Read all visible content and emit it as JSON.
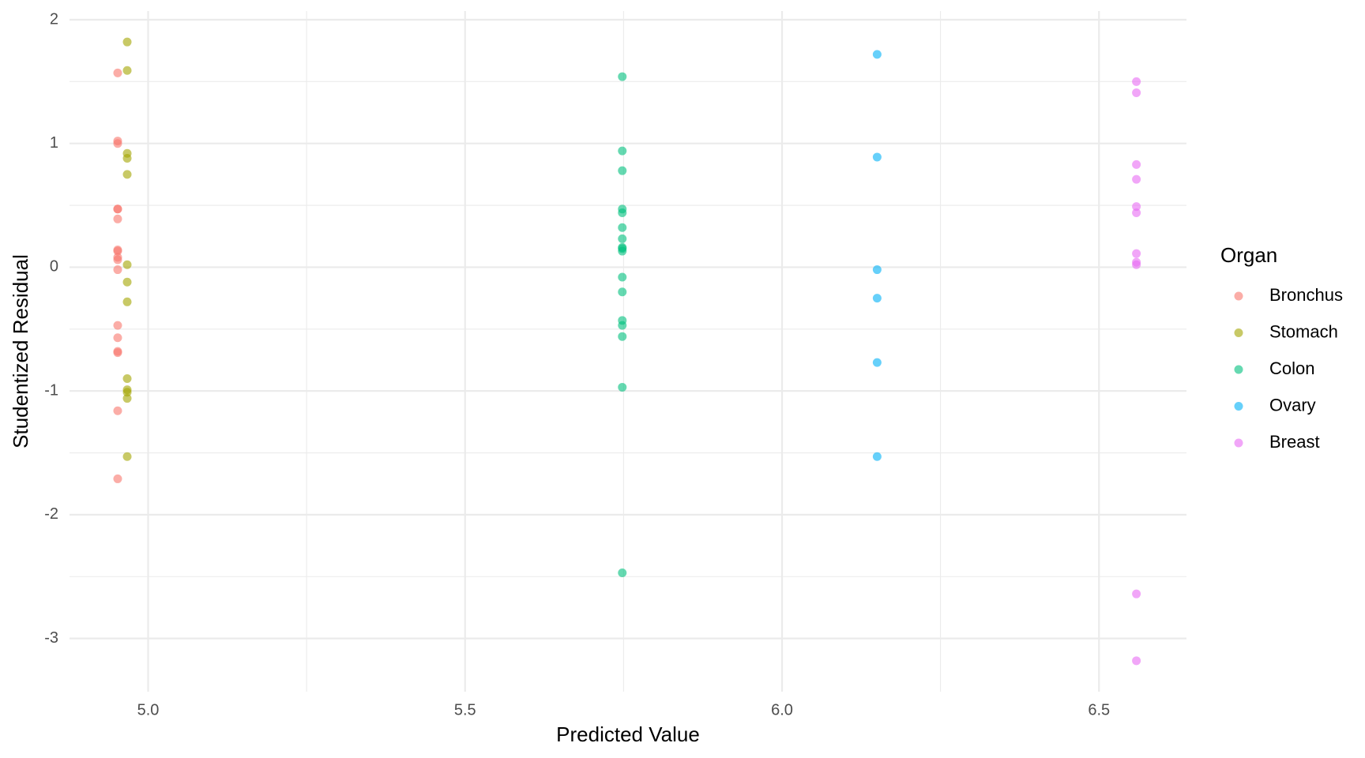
{
  "chart_data": {
    "type": "scatter",
    "x_label": "Predicted Value",
    "y_label": "Studentized Residual",
    "legend_title": "Organ",
    "legend_position": "right",
    "grid": true,
    "xlim": [
      4.876,
      6.638
    ],
    "ylim": [
      -3.43,
      2.07
    ],
    "xticks": [
      {
        "value": 5,
        "label": "5.0"
      },
      5.5,
      {
        "value": 6,
        "label": "6.0"
      },
      6.5
    ],
    "yticks": [
      -3,
      -2,
      -1,
      0,
      1,
      2
    ],
    "x_minor_ticks": [
      5.25,
      5.75,
      6.25
    ],
    "y_minor_ticks": [
      -2.5,
      -1.5,
      -0.5,
      0.5,
      1.5
    ],
    "opacity": 0.6,
    "series": [
      {
        "name": "Bronchus",
        "color": "#F8766D",
        "x": [
          4.952,
          4.952,
          4.952,
          4.952,
          4.952,
          4.952,
          4.952,
          4.952,
          4.952,
          4.952,
          4.952,
          4.952,
          4.952,
          4.952,
          4.952,
          4.952,
          4.952
        ],
        "values": [
          1.57,
          1.02,
          1.0,
          0.47,
          0.47,
          0.39,
          0.14,
          0.13,
          0.08,
          0.06,
          -0.02,
          -0.47,
          -0.57,
          -0.68,
          -0.69,
          -1.16,
          -1.71
        ]
      },
      {
        "name": "Stomach",
        "color": "#A3A500",
        "x": [
          4.967,
          4.967,
          4.967,
          4.967,
          4.967,
          4.967,
          4.967,
          4.967,
          4.967,
          4.967,
          4.967,
          4.967,
          4.967
        ],
        "values": [
          1.82,
          1.59,
          0.92,
          0.88,
          0.75,
          0.02,
          -0.12,
          -0.28,
          -0.9,
          -0.99,
          -1.01,
          -1.06,
          -1.53
        ]
      },
      {
        "name": "Colon",
        "color": "#00BF7D",
        "x": [
          5.748,
          5.748,
          5.748,
          5.748,
          5.748,
          5.748,
          5.748,
          5.748,
          5.748,
          5.748,
          5.748,
          5.748,
          5.748,
          5.748,
          5.748,
          5.748,
          5.748
        ],
        "values": [
          1.54,
          0.94,
          0.78,
          0.47,
          0.44,
          0.32,
          0.23,
          0.16,
          0.15,
          0.13,
          -0.08,
          -0.2,
          -0.43,
          -0.47,
          -0.56,
          -0.97,
          -2.47
        ]
      },
      {
        "name": "Ovary",
        "color": "#00B0F6",
        "x": [
          6.15,
          6.15,
          6.15,
          6.15,
          6.15,
          6.15
        ],
        "values": [
          1.72,
          0.89,
          -0.02,
          -0.25,
          -0.77,
          -1.53
        ]
      },
      {
        "name": "Breast",
        "color": "#E76BF3",
        "x": [
          6.559,
          6.559,
          6.559,
          6.559,
          6.559,
          6.559,
          6.559,
          6.559,
          6.559,
          6.559,
          6.559
        ],
        "values": [
          1.5,
          1.41,
          0.83,
          0.71,
          0.49,
          0.44,
          0.11,
          0.04,
          0.02,
          -2.64,
          -3.18
        ]
      }
    ]
  }
}
